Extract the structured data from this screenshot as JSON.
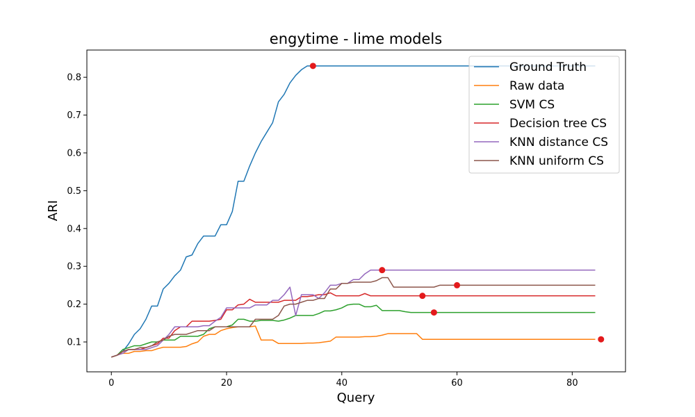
{
  "chart_data": {
    "type": "line",
    "title": "engytime - lime models",
    "xlabel": "Query",
    "ylabel": "ARI",
    "xlim": [
      -4.25,
      89.25
    ],
    "ylim": [
      0.021,
      0.872
    ],
    "xticks": [
      0,
      20,
      40,
      60,
      80
    ],
    "yticks": [
      0.1,
      0.2,
      0.3,
      0.4,
      0.5,
      0.6,
      0.7,
      0.8
    ],
    "grid": false,
    "legend_position": "top-right",
    "marker_color": "#e31a1c",
    "series": [
      {
        "name": "Ground Truth",
        "color": "#1f77b4",
        "points": [
          [
            0,
            0.06
          ],
          [
            1,
            0.065
          ],
          [
            2,
            0.075
          ],
          [
            3,
            0.095
          ],
          [
            4,
            0.12
          ],
          [
            5,
            0.135
          ],
          [
            6,
            0.16
          ],
          [
            7,
            0.195
          ],
          [
            8,
            0.195
          ],
          [
            9,
            0.24
          ],
          [
            10,
            0.255
          ],
          [
            11,
            0.275
          ],
          [
            12,
            0.29
          ],
          [
            13,
            0.325
          ],
          [
            14,
            0.33
          ],
          [
            15,
            0.36
          ],
          [
            16,
            0.38
          ],
          [
            17,
            0.38
          ],
          [
            18,
            0.38
          ],
          [
            19,
            0.41
          ],
          [
            20,
            0.41
          ],
          [
            21,
            0.445
          ],
          [
            22,
            0.525
          ],
          [
            23,
            0.525
          ],
          [
            24,
            0.565
          ],
          [
            25,
            0.6
          ],
          [
            26,
            0.63
          ],
          [
            27,
            0.655
          ],
          [
            28,
            0.68
          ],
          [
            29,
            0.735
          ],
          [
            30,
            0.755
          ],
          [
            31,
            0.785
          ],
          [
            32,
            0.805
          ],
          [
            33,
            0.82
          ],
          [
            34,
            0.83
          ],
          [
            35,
            0.83
          ],
          [
            84,
            0.83
          ]
        ],
        "marker": [
          35,
          0.83
        ]
      },
      {
        "name": "Raw data",
        "color": "#ff7f0e",
        "points": [
          [
            0,
            0.06
          ],
          [
            1,
            0.065
          ],
          [
            2,
            0.07
          ],
          [
            3,
            0.07
          ],
          [
            4,
            0.075
          ],
          [
            5,
            0.075
          ],
          [
            6,
            0.077
          ],
          [
            7,
            0.077
          ],
          [
            8,
            0.082
          ],
          [
            9,
            0.086
          ],
          [
            10,
            0.086
          ],
          [
            11,
            0.086
          ],
          [
            12,
            0.086
          ],
          [
            13,
            0.088
          ],
          [
            14,
            0.095
          ],
          [
            15,
            0.1
          ],
          [
            16,
            0.115
          ],
          [
            17,
            0.12
          ],
          [
            18,
            0.12
          ],
          [
            19,
            0.13
          ],
          [
            20,
            0.135
          ],
          [
            21,
            0.138
          ],
          [
            22,
            0.14
          ],
          [
            23,
            0.14
          ],
          [
            24,
            0.14
          ],
          [
            25,
            0.142
          ],
          [
            26,
            0.105
          ],
          [
            27,
            0.105
          ],
          [
            28,
            0.105
          ],
          [
            29,
            0.096
          ],
          [
            30,
            0.096
          ],
          [
            31,
            0.096
          ],
          [
            32,
            0.096
          ],
          [
            33,
            0.096
          ],
          [
            34,
            0.097
          ],
          [
            35,
            0.097
          ],
          [
            36,
            0.098
          ],
          [
            37,
            0.1
          ],
          [
            38,
            0.102
          ],
          [
            39,
            0.113
          ],
          [
            40,
            0.113
          ],
          [
            41,
            0.113
          ],
          [
            42,
            0.113
          ],
          [
            43,
            0.113
          ],
          [
            44,
            0.114
          ],
          [
            45,
            0.114
          ],
          [
            46,
            0.115
          ],
          [
            47,
            0.118
          ],
          [
            48,
            0.122
          ],
          [
            49,
            0.122
          ],
          [
            50,
            0.122
          ],
          [
            51,
            0.122
          ],
          [
            52,
            0.122
          ],
          [
            53,
            0.122
          ],
          [
            54,
            0.107
          ],
          [
            55,
            0.107
          ],
          [
            84,
            0.107
          ]
        ],
        "marker": [
          85,
          0.107
        ]
      },
      {
        "name": "SVM CS",
        "color": "#2ca02c",
        "points": [
          [
            0,
            0.06
          ],
          [
            1,
            0.065
          ],
          [
            2,
            0.08
          ],
          [
            3,
            0.085
          ],
          [
            4,
            0.09
          ],
          [
            5,
            0.09
          ],
          [
            6,
            0.095
          ],
          [
            7,
            0.1
          ],
          [
            8,
            0.1
          ],
          [
            9,
            0.105
          ],
          [
            10,
            0.105
          ],
          [
            11,
            0.105
          ],
          [
            12,
            0.115
          ],
          [
            13,
            0.115
          ],
          [
            14,
            0.115
          ],
          [
            15,
            0.115
          ],
          [
            16,
            0.12
          ],
          [
            17,
            0.135
          ],
          [
            18,
            0.14
          ],
          [
            19,
            0.14
          ],
          [
            20,
            0.14
          ],
          [
            21,
            0.145
          ],
          [
            22,
            0.16
          ],
          [
            23,
            0.16
          ],
          [
            24,
            0.155
          ],
          [
            25,
            0.155
          ],
          [
            26,
            0.157
          ],
          [
            27,
            0.157
          ],
          [
            28,
            0.157
          ],
          [
            29,
            0.155
          ],
          [
            30,
            0.158
          ],
          [
            31,
            0.163
          ],
          [
            32,
            0.17
          ],
          [
            33,
            0.17
          ],
          [
            34,
            0.17
          ],
          [
            35,
            0.17
          ],
          [
            36,
            0.175
          ],
          [
            37,
            0.182
          ],
          [
            38,
            0.182
          ],
          [
            39,
            0.185
          ],
          [
            40,
            0.19
          ],
          [
            41,
            0.198
          ],
          [
            42,
            0.2
          ],
          [
            43,
            0.2
          ],
          [
            44,
            0.193
          ],
          [
            45,
            0.193
          ],
          [
            46,
            0.197
          ],
          [
            47,
            0.183
          ],
          [
            48,
            0.183
          ],
          [
            49,
            0.183
          ],
          [
            50,
            0.183
          ],
          [
            51,
            0.18
          ],
          [
            52,
            0.178
          ],
          [
            84,
            0.178
          ]
        ],
        "marker": [
          56,
          0.178
        ]
      },
      {
        "name": "Decision tree CS",
        "color": "#d62728",
        "points": [
          [
            0,
            0.06
          ],
          [
            1,
            0.065
          ],
          [
            2,
            0.075
          ],
          [
            3,
            0.08
          ],
          [
            4,
            0.08
          ],
          [
            5,
            0.08
          ],
          [
            6,
            0.085
          ],
          [
            7,
            0.09
          ],
          [
            8,
            0.095
          ],
          [
            9,
            0.11
          ],
          [
            10,
            0.11
          ],
          [
            11,
            0.13
          ],
          [
            12,
            0.14
          ],
          [
            13,
            0.14
          ],
          [
            14,
            0.155
          ],
          [
            15,
            0.155
          ],
          [
            16,
            0.155
          ],
          [
            17,
            0.155
          ],
          [
            18,
            0.157
          ],
          [
            19,
            0.16
          ],
          [
            20,
            0.185
          ],
          [
            21,
            0.185
          ],
          [
            22,
            0.198
          ],
          [
            23,
            0.2
          ],
          [
            24,
            0.213
          ],
          [
            25,
            0.205
          ],
          [
            26,
            0.205
          ],
          [
            27,
            0.205
          ],
          [
            28,
            0.205
          ],
          [
            29,
            0.205
          ],
          [
            30,
            0.21
          ],
          [
            31,
            0.21
          ],
          [
            32,
            0.21
          ],
          [
            33,
            0.22
          ],
          [
            34,
            0.22
          ],
          [
            35,
            0.222
          ],
          [
            36,
            0.225
          ],
          [
            37,
            0.225
          ],
          [
            38,
            0.23
          ],
          [
            39,
            0.222
          ],
          [
            40,
            0.222
          ],
          [
            41,
            0.222
          ],
          [
            42,
            0.222
          ],
          [
            43,
            0.222
          ],
          [
            44,
            0.228
          ],
          [
            45,
            0.222
          ],
          [
            46,
            0.222
          ],
          [
            84,
            0.222
          ]
        ],
        "marker": [
          54,
          0.222
        ]
      },
      {
        "name": "KNN distance CS",
        "color": "#9467bd",
        "points": [
          [
            0,
            0.06
          ],
          [
            1,
            0.065
          ],
          [
            2,
            0.07
          ],
          [
            3,
            0.08
          ],
          [
            4,
            0.08
          ],
          [
            5,
            0.08
          ],
          [
            6,
            0.08
          ],
          [
            7,
            0.085
          ],
          [
            8,
            0.09
          ],
          [
            9,
            0.105
          ],
          [
            10,
            0.12
          ],
          [
            11,
            0.14
          ],
          [
            12,
            0.14
          ],
          [
            13,
            0.14
          ],
          [
            14,
            0.14
          ],
          [
            15,
            0.14
          ],
          [
            16,
            0.143
          ],
          [
            17,
            0.143
          ],
          [
            18,
            0.155
          ],
          [
            19,
            0.165
          ],
          [
            20,
            0.19
          ],
          [
            21,
            0.19
          ],
          [
            22,
            0.19
          ],
          [
            23,
            0.19
          ],
          [
            24,
            0.19
          ],
          [
            25,
            0.198
          ],
          [
            26,
            0.198
          ],
          [
            27,
            0.198
          ],
          [
            28,
            0.21
          ],
          [
            29,
            0.21
          ],
          [
            30,
            0.225
          ],
          [
            31,
            0.245
          ],
          [
            32,
            0.17
          ],
          [
            33,
            0.225
          ],
          [
            34,
            0.225
          ],
          [
            35,
            0.225
          ],
          [
            36,
            0.215
          ],
          [
            37,
            0.23
          ],
          [
            38,
            0.25
          ],
          [
            39,
            0.25
          ],
          [
            40,
            0.255
          ],
          [
            41,
            0.255
          ],
          [
            42,
            0.265
          ],
          [
            43,
            0.265
          ],
          [
            44,
            0.28
          ],
          [
            45,
            0.29
          ],
          [
            46,
            0.29
          ],
          [
            84,
            0.29
          ]
        ],
        "marker": [
          47,
          0.29
        ]
      },
      {
        "name": "KNN uniform CS",
        "color": "#8c564b",
        "points": [
          [
            0,
            0.06
          ],
          [
            1,
            0.065
          ],
          [
            2,
            0.075
          ],
          [
            3,
            0.08
          ],
          [
            4,
            0.08
          ],
          [
            5,
            0.085
          ],
          [
            6,
            0.085
          ],
          [
            7,
            0.09
          ],
          [
            8,
            0.1
          ],
          [
            9,
            0.105
          ],
          [
            10,
            0.115
          ],
          [
            11,
            0.12
          ],
          [
            12,
            0.12
          ],
          [
            13,
            0.12
          ],
          [
            14,
            0.125
          ],
          [
            15,
            0.13
          ],
          [
            16,
            0.13
          ],
          [
            17,
            0.13
          ],
          [
            18,
            0.14
          ],
          [
            19,
            0.14
          ],
          [
            20,
            0.14
          ],
          [
            21,
            0.14
          ],
          [
            22,
            0.14
          ],
          [
            23,
            0.14
          ],
          [
            24,
            0.14
          ],
          [
            25,
            0.16
          ],
          [
            26,
            0.16
          ],
          [
            27,
            0.16
          ],
          [
            28,
            0.16
          ],
          [
            29,
            0.17
          ],
          [
            30,
            0.195
          ],
          [
            31,
            0.2
          ],
          [
            32,
            0.2
          ],
          [
            33,
            0.205
          ],
          [
            34,
            0.21
          ],
          [
            35,
            0.21
          ],
          [
            36,
            0.215
          ],
          [
            37,
            0.215
          ],
          [
            38,
            0.24
          ],
          [
            39,
            0.24
          ],
          [
            40,
            0.255
          ],
          [
            41,
            0.255
          ],
          [
            42,
            0.258
          ],
          [
            43,
            0.258
          ],
          [
            44,
            0.258
          ],
          [
            45,
            0.258
          ],
          [
            46,
            0.262
          ],
          [
            47,
            0.27
          ],
          [
            48,
            0.27
          ],
          [
            49,
            0.245
          ],
          [
            50,
            0.245
          ],
          [
            51,
            0.245
          ],
          [
            52,
            0.245
          ],
          [
            53,
            0.245
          ],
          [
            54,
            0.245
          ],
          [
            55,
            0.245
          ],
          [
            56,
            0.245
          ],
          [
            57,
            0.25
          ],
          [
            84,
            0.25
          ]
        ],
        "marker": [
          60,
          0.25
        ]
      }
    ]
  }
}
